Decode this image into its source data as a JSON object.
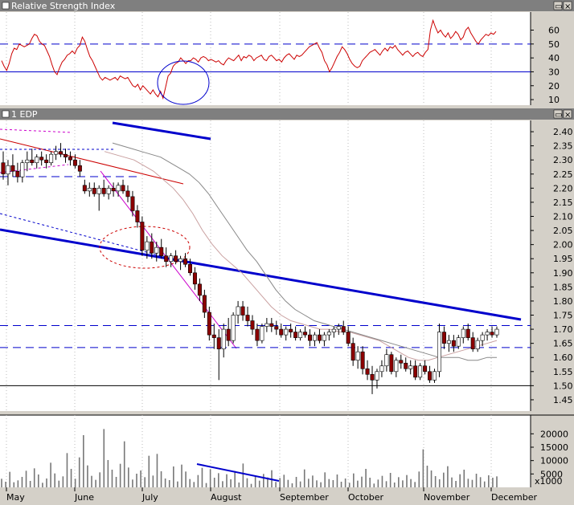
{
  "chart_data": {
    "type": "candlestick",
    "months": [
      "May",
      "June",
      "July",
      "August",
      "September",
      "October",
      "November",
      "December"
    ],
    "rsi": {
      "title": "Relative Strength Index",
      "ticks": [
        10,
        20,
        30,
        40,
        50,
        60
      ],
      "ylim": [
        6,
        73
      ],
      "overbought": 50,
      "oversold": 30,
      "values": [
        38,
        34,
        31,
        36,
        43,
        47,
        46,
        50,
        49,
        48,
        49,
        50,
        54,
        57,
        56,
        52,
        50,
        49,
        45,
        41,
        35,
        30,
        28,
        33,
        37,
        39,
        42,
        43,
        45,
        43,
        47,
        49,
        55,
        52,
        46,
        41,
        38,
        34,
        30,
        26,
        24,
        26,
        25,
        24,
        25,
        26,
        24,
        27,
        26,
        25,
        26,
        23,
        20,
        19,
        21,
        17,
        20,
        18,
        16,
        14,
        17,
        14,
        12,
        16,
        11,
        19,
        27,
        29,
        34,
        36,
        37,
        40,
        38,
        36,
        38,
        38,
        40,
        39,
        37,
        40,
        41,
        40,
        38,
        39,
        38,
        37,
        38,
        36,
        35,
        38,
        40,
        39,
        38,
        40,
        42,
        38,
        41,
        40,
        42,
        41,
        38,
        40,
        41,
        42,
        39,
        38,
        41,
        42,
        40,
        38,
        39,
        37,
        40,
        42,
        43,
        41,
        39,
        42,
        41,
        42,
        44,
        46,
        48,
        49,
        50,
        51,
        47,
        44,
        38,
        35,
        30,
        33,
        37,
        41,
        44,
        48,
        46,
        43,
        39,
        36,
        34,
        33,
        34,
        38,
        40,
        42,
        44,
        45,
        46,
        44,
        42,
        45,
        47,
        45,
        48,
        47,
        49,
        46,
        44,
        42,
        44,
        45,
        43,
        41,
        43,
        44,
        42,
        41,
        44,
        46,
        60,
        67,
        62,
        58,
        60,
        57,
        55,
        58,
        54,
        56,
        59,
        57,
        53,
        55,
        60,
        62,
        58,
        55,
        52,
        50,
        53,
        55,
        57,
        56,
        58,
        57,
        59
      ],
      "circle_label": ""
    },
    "price": {
      "title": "1 EDP",
      "ticks": [
        1.45,
        1.5,
        1.55,
        1.6,
        1.65,
        1.7,
        1.75,
        1.8,
        1.85,
        1.9,
        1.95,
        2.0,
        2.05,
        2.1,
        2.15,
        2.2,
        2.25,
        2.3,
        2.35,
        2.4
      ],
      "ylim": [
        1.41,
        2.44
      ],
      "candles": [
        {
          "o": 2.29,
          "h": 2.33,
          "l": 2.23,
          "c": 2.25
        },
        {
          "o": 2.25,
          "h": 2.3,
          "l": 2.21,
          "c": 2.28
        },
        {
          "o": 2.28,
          "h": 2.32,
          "l": 2.24,
          "c": 2.26
        },
        {
          "o": 2.26,
          "h": 2.29,
          "l": 2.22,
          "c": 2.24
        },
        {
          "o": 2.24,
          "h": 2.3,
          "l": 2.22,
          "c": 2.29
        },
        {
          "o": 2.29,
          "h": 2.33,
          "l": 2.26,
          "c": 2.3
        },
        {
          "o": 2.3,
          "h": 2.34,
          "l": 2.28,
          "c": 2.29
        },
        {
          "o": 2.29,
          "h": 2.32,
          "l": 2.27,
          "c": 2.31
        },
        {
          "o": 2.31,
          "h": 2.33,
          "l": 2.28,
          "c": 2.3
        },
        {
          "o": 2.3,
          "h": 2.32,
          "l": 2.27,
          "c": 2.29
        },
        {
          "o": 2.29,
          "h": 2.33,
          "l": 2.28,
          "c": 2.32
        },
        {
          "o": 2.32,
          "h": 2.35,
          "l": 2.3,
          "c": 2.33
        },
        {
          "o": 2.33,
          "h": 2.36,
          "l": 2.31,
          "c": 2.32
        },
        {
          "o": 2.32,
          "h": 2.34,
          "l": 2.29,
          "c": 2.31
        },
        {
          "o": 2.31,
          "h": 2.33,
          "l": 2.28,
          "c": 2.3
        },
        {
          "o": 2.3,
          "h": 2.32,
          "l": 2.27,
          "c": 2.28
        },
        {
          "o": 2.28,
          "h": 2.3,
          "l": 2.24,
          "c": 2.26
        },
        {
          "o": 2.21,
          "h": 2.23,
          "l": 2.18,
          "c": 2.19
        },
        {
          "o": 2.19,
          "h": 2.22,
          "l": 2.17,
          "c": 2.2
        },
        {
          "o": 2.2,
          "h": 2.22,
          "l": 2.17,
          "c": 2.18
        },
        {
          "o": 2.18,
          "h": 2.21,
          "l": 2.12,
          "c": 2.2
        },
        {
          "o": 2.2,
          "h": 2.23,
          "l": 2.17,
          "c": 2.18
        },
        {
          "o": 2.18,
          "h": 2.21,
          "l": 2.16,
          "c": 2.2
        },
        {
          "o": 2.2,
          "h": 2.22,
          "l": 2.17,
          "c": 2.19
        },
        {
          "o": 2.19,
          "h": 2.22,
          "l": 2.17,
          "c": 2.21
        },
        {
          "o": 2.21,
          "h": 2.23,
          "l": 2.18,
          "c": 2.19
        },
        {
          "o": 2.19,
          "h": 2.21,
          "l": 2.15,
          "c": 2.17
        },
        {
          "o": 2.17,
          "h": 2.19,
          "l": 2.1,
          "c": 2.12
        },
        {
          "o": 2.12,
          "h": 2.14,
          "l": 2.06,
          "c": 2.08
        },
        {
          "o": 2.08,
          "h": 2.1,
          "l": 1.96,
          "c": 1.98
        },
        {
          "o": 1.98,
          "h": 2.03,
          "l": 1.95,
          "c": 2.01
        },
        {
          "o": 2.01,
          "h": 2.04,
          "l": 1.95,
          "c": 1.97
        },
        {
          "o": 1.97,
          "h": 2.01,
          "l": 1.94,
          "c": 1.99
        },
        {
          "o": 1.99,
          "h": 2.02,
          "l": 1.95,
          "c": 1.96
        },
        {
          "o": 1.96,
          "h": 1.99,
          "l": 1.92,
          "c": 1.94
        },
        {
          "o": 1.94,
          "h": 1.97,
          "l": 1.92,
          "c": 1.96
        },
        {
          "o": 1.96,
          "h": 1.98,
          "l": 1.93,
          "c": 1.94
        },
        {
          "o": 1.94,
          "h": 1.96,
          "l": 1.91,
          "c": 1.95
        },
        {
          "o": 1.95,
          "h": 1.97,
          "l": 1.92,
          "c": 1.93
        },
        {
          "o": 1.93,
          "h": 1.95,
          "l": 1.89,
          "c": 1.9
        },
        {
          "o": 1.9,
          "h": 1.92,
          "l": 1.84,
          "c": 1.86
        },
        {
          "o": 1.86,
          "h": 1.88,
          "l": 1.8,
          "c": 1.82
        },
        {
          "o": 1.82,
          "h": 1.84,
          "l": 1.74,
          "c": 1.76
        },
        {
          "o": 1.76,
          "h": 1.78,
          "l": 1.66,
          "c": 1.68
        },
        {
          "o": 1.68,
          "h": 1.72,
          "l": 1.63,
          "c": 1.67
        },
        {
          "o": 1.67,
          "h": 1.7,
          "l": 1.52,
          "c": 1.63
        },
        {
          "o": 1.63,
          "h": 1.72,
          "l": 1.6,
          "c": 1.7
        },
        {
          "o": 1.7,
          "h": 1.74,
          "l": 1.64,
          "c": 1.66
        },
        {
          "o": 1.66,
          "h": 1.76,
          "l": 1.65,
          "c": 1.75
        },
        {
          "o": 1.75,
          "h": 1.8,
          "l": 1.72,
          "c": 1.78
        },
        {
          "o": 1.78,
          "h": 1.8,
          "l": 1.73,
          "c": 1.75
        },
        {
          "o": 1.75,
          "h": 1.78,
          "l": 1.71,
          "c": 1.73
        },
        {
          "o": 1.73,
          "h": 1.75,
          "l": 1.68,
          "c": 1.7
        },
        {
          "o": 1.7,
          "h": 1.72,
          "l": 1.64,
          "c": 1.66
        },
        {
          "o": 1.66,
          "h": 1.72,
          "l": 1.65,
          "c": 1.71
        },
        {
          "o": 1.71,
          "h": 1.74,
          "l": 1.69,
          "c": 1.72
        },
        {
          "o": 1.72,
          "h": 1.74,
          "l": 1.69,
          "c": 1.71
        },
        {
          "o": 1.71,
          "h": 1.73,
          "l": 1.68,
          "c": 1.7
        },
        {
          "o": 1.7,
          "h": 1.72,
          "l": 1.67,
          "c": 1.68
        },
        {
          "o": 1.68,
          "h": 1.71,
          "l": 1.66,
          "c": 1.7
        },
        {
          "o": 1.7,
          "h": 1.72,
          "l": 1.67,
          "c": 1.69
        },
        {
          "o": 1.69,
          "h": 1.71,
          "l": 1.66,
          "c": 1.67
        },
        {
          "o": 1.67,
          "h": 1.7,
          "l": 1.66,
          "c": 1.69
        },
        {
          "o": 1.69,
          "h": 1.71,
          "l": 1.67,
          "c": 1.68
        },
        {
          "o": 1.68,
          "h": 1.7,
          "l": 1.64,
          "c": 1.66
        },
        {
          "o": 1.66,
          "h": 1.69,
          "l": 1.64,
          "c": 1.68
        },
        {
          "o": 1.68,
          "h": 1.7,
          "l": 1.65,
          "c": 1.66
        },
        {
          "o": 1.66,
          "h": 1.69,
          "l": 1.64,
          "c": 1.68
        },
        {
          "o": 1.68,
          "h": 1.7,
          "l": 1.66,
          "c": 1.69
        },
        {
          "o": 1.69,
          "h": 1.71,
          "l": 1.67,
          "c": 1.7
        },
        {
          "o": 1.7,
          "h": 1.72,
          "l": 1.68,
          "c": 1.71
        },
        {
          "o": 1.71,
          "h": 1.73,
          "l": 1.68,
          "c": 1.69
        },
        {
          "o": 1.69,
          "h": 1.71,
          "l": 1.64,
          "c": 1.65
        },
        {
          "o": 1.65,
          "h": 1.67,
          "l": 1.57,
          "c": 1.59
        },
        {
          "o": 1.59,
          "h": 1.64,
          "l": 1.56,
          "c": 1.62
        },
        {
          "o": 1.62,
          "h": 1.64,
          "l": 1.54,
          "c": 1.56
        },
        {
          "o": 1.56,
          "h": 1.59,
          "l": 1.52,
          "c": 1.54
        },
        {
          "o": 1.54,
          "h": 1.57,
          "l": 1.47,
          "c": 1.52
        },
        {
          "o": 1.52,
          "h": 1.56,
          "l": 1.49,
          "c": 1.55
        },
        {
          "o": 1.55,
          "h": 1.59,
          "l": 1.53,
          "c": 1.57
        },
        {
          "o": 1.57,
          "h": 1.63,
          "l": 1.55,
          "c": 1.61
        },
        {
          "o": 1.61,
          "h": 1.62,
          "l": 1.54,
          "c": 1.55
        },
        {
          "o": 1.55,
          "h": 1.6,
          "l": 1.53,
          "c": 1.59
        },
        {
          "o": 1.59,
          "h": 1.61,
          "l": 1.56,
          "c": 1.58
        },
        {
          "o": 1.58,
          "h": 1.6,
          "l": 1.55,
          "c": 1.56
        },
        {
          "o": 1.56,
          "h": 1.59,
          "l": 1.54,
          "c": 1.57
        },
        {
          "o": 1.57,
          "h": 1.59,
          "l": 1.52,
          "c": 1.53
        },
        {
          "o": 1.53,
          "h": 1.58,
          "l": 1.52,
          "c": 1.57
        },
        {
          "o": 1.57,
          "h": 1.59,
          "l": 1.54,
          "c": 1.55
        },
        {
          "o": 1.55,
          "h": 1.57,
          "l": 1.51,
          "c": 1.52
        },
        {
          "o": 1.52,
          "h": 1.56,
          "l": 1.51,
          "c": 1.55
        },
        {
          "o": 1.55,
          "h": 1.72,
          "l": 1.53,
          "c": 1.69
        },
        {
          "o": 1.69,
          "h": 1.71,
          "l": 1.63,
          "c": 1.65
        },
        {
          "o": 1.65,
          "h": 1.68,
          "l": 1.62,
          "c": 1.66
        },
        {
          "o": 1.66,
          "h": 1.68,
          "l": 1.62,
          "c": 1.64
        },
        {
          "o": 1.64,
          "h": 1.68,
          "l": 1.63,
          "c": 1.67
        },
        {
          "o": 1.67,
          "h": 1.71,
          "l": 1.65,
          "c": 1.7
        },
        {
          "o": 1.7,
          "h": 1.72,
          "l": 1.66,
          "c": 1.67
        },
        {
          "o": 1.67,
          "h": 1.69,
          "l": 1.62,
          "c": 1.63
        },
        {
          "o": 1.63,
          "h": 1.67,
          "l": 1.62,
          "c": 1.66
        },
        {
          "o": 1.66,
          "h": 1.69,
          "l": 1.64,
          "c": 1.68
        },
        {
          "o": 1.68,
          "h": 1.7,
          "l": 1.66,
          "c": 1.69
        },
        {
          "o": 1.69,
          "h": 1.71,
          "l": 1.67,
          "c": 1.68
        },
        {
          "o": 1.68,
          "h": 1.71,
          "l": 1.67,
          "c": 1.7
        }
      ],
      "ma_fast": [
        2.33,
        2.32,
        2.31,
        2.3,
        2.28,
        2.26,
        2.23,
        2.2,
        2.16,
        2.11,
        2.05,
        2.0,
        1.96,
        1.93,
        1.9,
        1.86,
        1.82,
        1.78,
        1.75,
        1.73,
        1.72,
        1.71,
        1.7,
        1.7,
        1.69,
        1.69,
        1.68,
        1.67,
        1.66,
        1.64,
        1.62,
        1.6,
        1.59,
        1.59,
        1.6,
        1.61,
        1.62,
        1.63,
        1.64,
        1.65,
        1.66
      ],
      "ma_slow": [
        2.36,
        2.35,
        2.34,
        2.33,
        2.32,
        2.31,
        2.29,
        2.27,
        2.25,
        2.22,
        2.18,
        2.13,
        2.08,
        2.03,
        1.98,
        1.94,
        1.89,
        1.84,
        1.8,
        1.77,
        1.75,
        1.73,
        1.72,
        1.71,
        1.7,
        1.69,
        1.68,
        1.67,
        1.66,
        1.65,
        1.64,
        1.63,
        1.62,
        1.61,
        1.6,
        1.6,
        1.6,
        1.59,
        1.59,
        1.6,
        1.6
      ],
      "support_level": 1.5,
      "resistance_dashed": 1.713,
      "support_dashed": 1.635
    },
    "volume": {
      "ticks": [
        5000,
        10000,
        15000,
        20000
      ],
      "unit_label": "x1000",
      "ylim": [
        0,
        27000
      ],
      "values": [
        3200,
        2100,
        5800,
        1900,
        2600,
        3900,
        6200,
        2400,
        7100,
        4800,
        1700,
        3300,
        9200,
        5200,
        2500,
        4100,
        12800,
        6900,
        3200,
        11200,
        19500,
        8200,
        4300,
        2800,
        5600,
        21800,
        10200,
        6600,
        3900,
        8800,
        17200,
        7400,
        2900,
        5100,
        6300,
        3800,
        11800,
        4400,
        12500,
        6000,
        3300,
        2700,
        7800,
        2200,
        8500,
        5900,
        3100,
        2000,
        4600,
        7300,
        1600,
        6800,
        3600,
        5300,
        2300,
        4900,
        3000,
        6100,
        1800,
        8900,
        3400,
        1300,
        4200,
        2500,
        5000,
        3700,
        6400,
        2000,
        3500,
        4700,
        2800,
        1500,
        3900,
        2200,
        6700,
        3200,
        4400,
        2600,
        1900,
        5600,
        3100,
        2700,
        4800,
        2100,
        3300,
        1700,
        5200,
        2500,
        4000,
        6900,
        3600,
        1400,
        2900,
        4300,
        2300,
        5400,
        1800,
        3800,
        2600,
        4600,
        3100,
        2000,
        5900,
        14200,
        8100,
        6300,
        4200,
        3000,
        5500,
        7900,
        3700,
        2400,
        4900,
        6600,
        3200,
        2800,
        5100,
        3800,
        2200,
        4500,
        3600,
        4100
      ]
    },
    "months_ticks": [
      "May",
      "June",
      "July",
      "August",
      "September",
      "October",
      "November",
      "December"
    ]
  }
}
